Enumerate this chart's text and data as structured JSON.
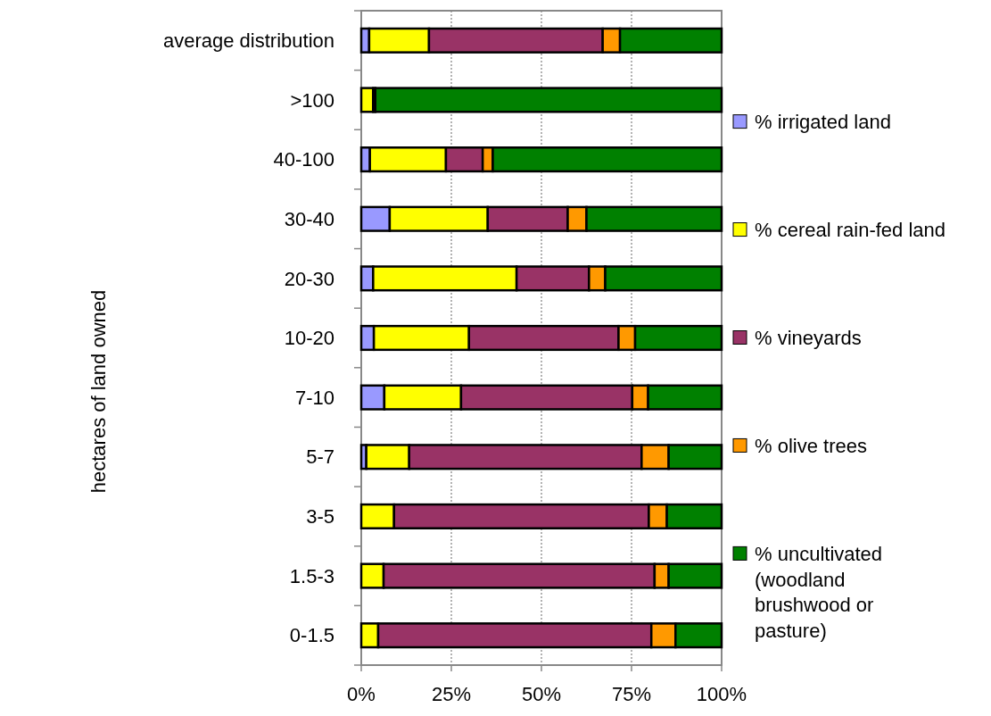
{
  "chart_data": {
    "type": "bar",
    "orientation": "horizontal",
    "stacked": true,
    "ylabel": "hectares of land owned",
    "categories": [
      "average distribution",
      ">100",
      "40-100",
      "30-40",
      "20-30",
      "10-20",
      "7-10",
      "5-7",
      "3-5",
      "1.5-3",
      "0-1.5"
    ],
    "series": [
      {
        "name": "% irrigated land",
        "color": "#9999ff",
        "values": [
          2.2,
          0,
          2.4,
          7.9,
          3.3,
          3.5,
          6.4,
          1.4,
          null,
          null,
          null
        ]
      },
      {
        "name": "% cereal rain-fed land",
        "color": "#ffff00",
        "values": [
          16.6,
          3.3,
          21.1,
          27.2,
          39.8,
          26.4,
          21.3,
          11.9,
          9.1,
          6.2,
          4.7
        ]
      },
      {
        "name": "% vineyards",
        "color": "#993366",
        "values": [
          48.2,
          0.6,
          10.2,
          22.2,
          20.1,
          41.5,
          47.5,
          64.5,
          70.7,
          75.2,
          75.8
        ]
      },
      {
        "name": "% olive trees",
        "color": "#ff9900",
        "values": [
          4.8,
          0,
          2.8,
          5.2,
          4.5,
          4.6,
          4.4,
          7.5,
          5.0,
          3.9,
          6.7
        ]
      },
      {
        "name": "% uncultivated (woodland brushwood or pasture)",
        "color": "#008000",
        "values": [
          28.2,
          96.1,
          63.5,
          37.5,
          32.3,
          24.0,
          20.4,
          14.7,
          15.2,
          14.7,
          12.8
        ]
      }
    ],
    "xlim": [
      0,
      100
    ],
    "xticks": [
      {
        "value": 0,
        "label": "0%"
      },
      {
        "value": 25,
        "label": "25%"
      },
      {
        "value": 50,
        "label": "50%"
      },
      {
        "value": 75,
        "label": "75%"
      },
      {
        "value": 100,
        "label": "100%"
      }
    ],
    "grid": "x",
    "legend": "right"
  }
}
